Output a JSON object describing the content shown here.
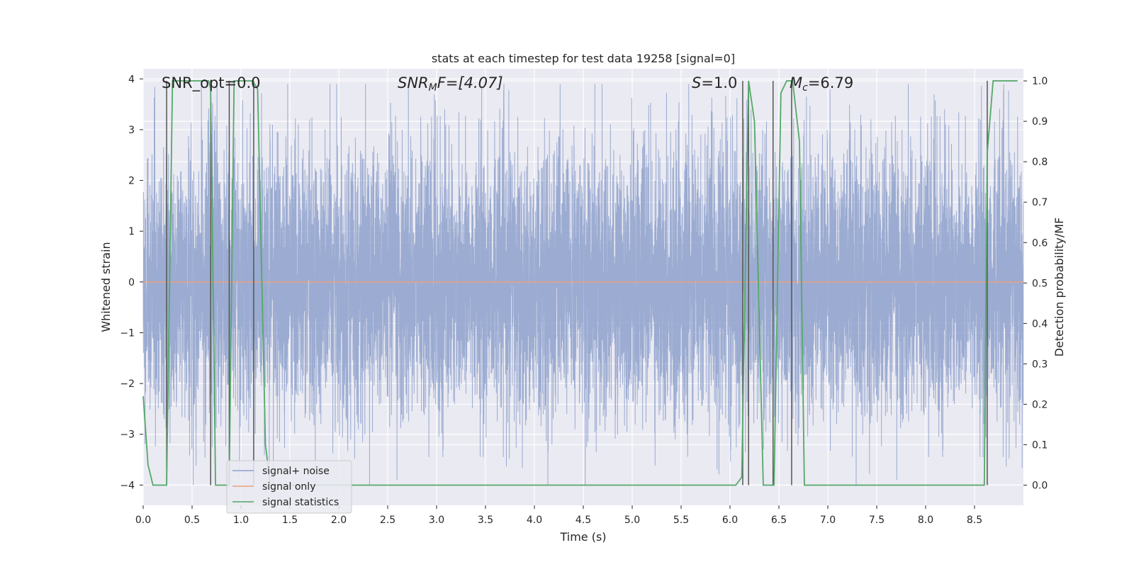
{
  "chart_data": {
    "type": "line",
    "title": "stats at each timestep for test data 19258 [signal=0]",
    "xlabel": "Time (s)",
    "ylabel_left": "Whitened strain",
    "ylabel_right": "Detection probability/MF",
    "xlim": [
      0,
      9.0
    ],
    "ylim_left": [
      -4.4,
      4.2
    ],
    "ylim_right": [
      -0.05,
      1.03
    ],
    "x_ticks": [
      0.0,
      0.5,
      1.0,
      1.5,
      2.0,
      2.5,
      3.0,
      3.5,
      4.0,
      4.5,
      5.0,
      5.5,
      6.0,
      6.5,
      7.0,
      7.5,
      8.0,
      8.5
    ],
    "x_tick_labels": [
      "0.0",
      "0.5",
      "1.0",
      "1.5",
      "2.0",
      "2.5",
      "3.0",
      "3.5",
      "4.0",
      "4.5",
      "5.0",
      "5.5",
      "6.0",
      "6.5",
      "7.0",
      "7.5",
      "8.0",
      "8.5"
    ],
    "y_left_ticks": [
      4,
      3,
      2,
      1,
      0,
      -1,
      -2,
      -3,
      -4
    ],
    "y_left_tick_labels": [
      "4",
      "3",
      "2",
      "1",
      "0",
      "−1",
      "−2",
      "−3",
      "−4"
    ],
    "y_right_ticks": [
      1.0,
      0.9,
      0.8,
      0.7,
      0.6,
      0.5,
      0.4,
      0.3,
      0.2,
      0.1,
      0.0
    ],
    "y_right_tick_labels": [
      "1.0",
      "0.9",
      "0.8",
      "0.7",
      "0.6",
      "0.5",
      "0.4",
      "0.3",
      "0.2",
      "0.1",
      "0.0"
    ],
    "grid": true,
    "legend": {
      "placement": "lower-left",
      "entries": [
        {
          "label": "signal+ noise",
          "color": "#8da0cb"
        },
        {
          "label": "signal only",
          "color": "#e8a07f"
        },
        {
          "label": "signal statistics",
          "color": "#55a868"
        }
      ]
    },
    "annotations": {
      "snr_opt": "SNR_opt=0.0",
      "snr_mf_symbol": "SNR",
      "snr_mf_sub": "M",
      "snr_mf_rest": "F=[4.07]",
      "s_symbol": "S",
      "s_rest": "=1.0",
      "mc_symbol": "M",
      "mc_sub": "c",
      "mc_rest": "=6.79"
    },
    "series": [
      {
        "name": "signal+ noise",
        "axis": "left",
        "color": "#8da0cb",
        "sample_rate_hz": 1024,
        "typical_amplitude": 1.3,
        "peak_range": [
          -4.0,
          3.9
        ]
      },
      {
        "name": "signal only",
        "axis": "left",
        "color": "#e8a07f",
        "x": [
          0.0,
          9.0
        ],
        "y": [
          0.0,
          0.0
        ]
      },
      {
        "name": "signal statistics",
        "axis": "right",
        "color": "#55a868",
        "x": [
          0.0,
          0.05,
          0.1,
          0.18,
          0.24,
          0.3,
          0.48,
          0.67,
          0.69,
          0.74,
          0.8,
          0.88,
          0.93,
          1.12,
          1.17,
          1.25,
          1.3,
          1.8,
          2.0,
          3.0,
          4.0,
          5.0,
          6.06,
          6.12,
          6.19,
          6.25,
          6.34,
          6.45,
          6.52,
          6.58,
          6.64,
          6.71,
          6.76,
          6.85,
          7.5,
          8.0,
          8.5,
          8.6,
          8.63,
          8.69,
          8.75,
          8.94
        ],
        "y": [
          0.22,
          0.05,
          0.0,
          0.0,
          0.0,
          1.0,
          1.0,
          1.0,
          0.98,
          0.0,
          0.0,
          0.0,
          1.0,
          1.0,
          0.98,
          0.1,
          0.0,
          0.0,
          0.0,
          0.0,
          0.0,
          0.0,
          0.0,
          0.02,
          1.0,
          0.9,
          0.0,
          0.0,
          0.97,
          1.0,
          1.0,
          0.85,
          0.0,
          0.0,
          0.0,
          0.0,
          0.0,
          0.0,
          0.82,
          1.0,
          1.0,
          1.0
        ]
      }
    ],
    "vertical_markers_s": [
      0.24,
      0.69,
      0.88,
      1.13,
      6.13,
      6.19,
      6.44,
      6.63,
      8.63
    ]
  }
}
